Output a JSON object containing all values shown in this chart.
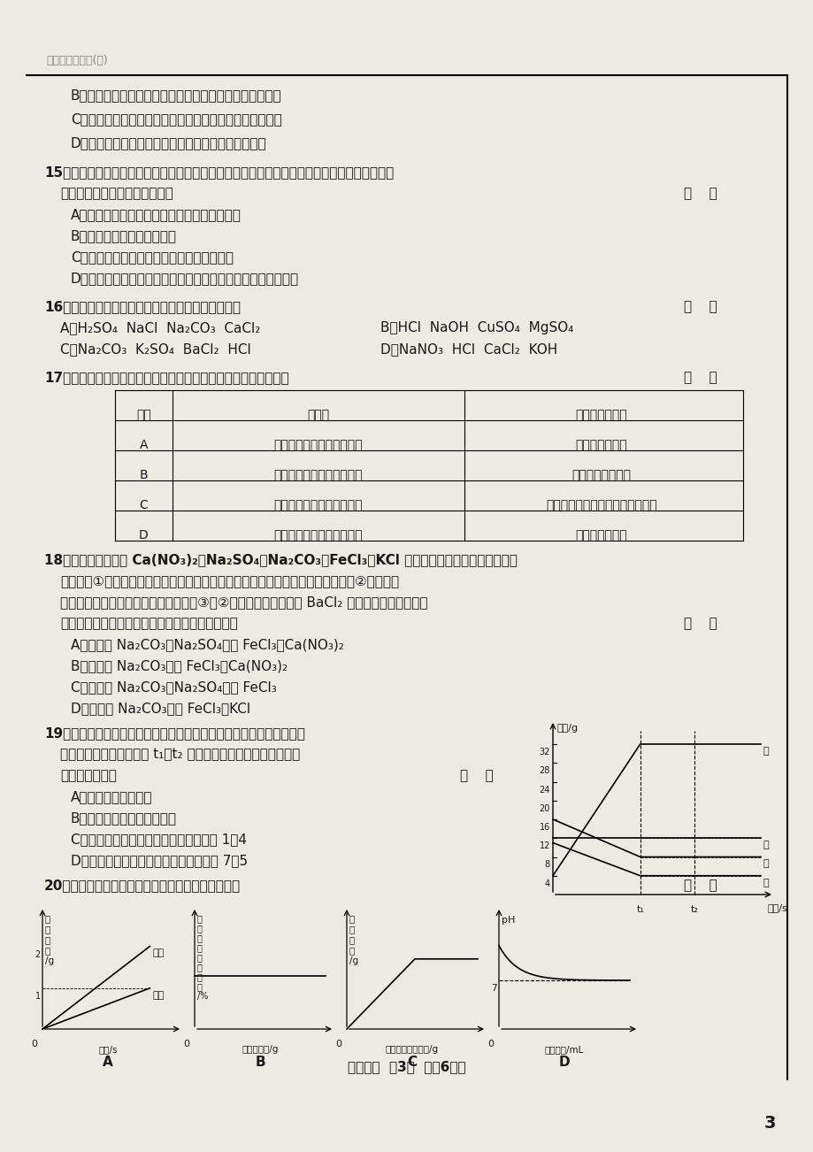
{
  "bg_color": "#ede9e3",
  "text_color": "#1a1a1a",
  "title": "中考仿真模拟卷(八)",
  "page_number": "3",
  "footer": "化学试题  第3页  （共6页）"
}
